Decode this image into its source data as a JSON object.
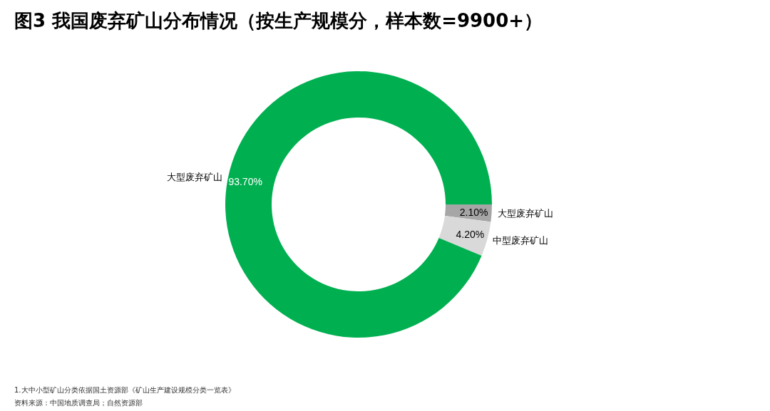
{
  "chart_data": {
    "type": "donut",
    "title": "图3 我国废弃矿山分布情况（按生产规模分，样本数=9900+）",
    "categories": [
      "大型废弃矿山",
      "中型废弃矿山",
      "大型废弃矿山"
    ],
    "values": [
      2.1,
      4.2,
      93.7
    ],
    "colors": [
      "#a6a6a6",
      "#d9d9d9",
      "#00b050"
    ],
    "value_labels": [
      "2.10%",
      "4.20%",
      "93.70%"
    ],
    "annotations": [
      "1.大中小型矿山分类依据国土资源部《矿山生产建设规模分类一览表》",
      "资料来源：中国地质调查局；自然资源部"
    ]
  }
}
